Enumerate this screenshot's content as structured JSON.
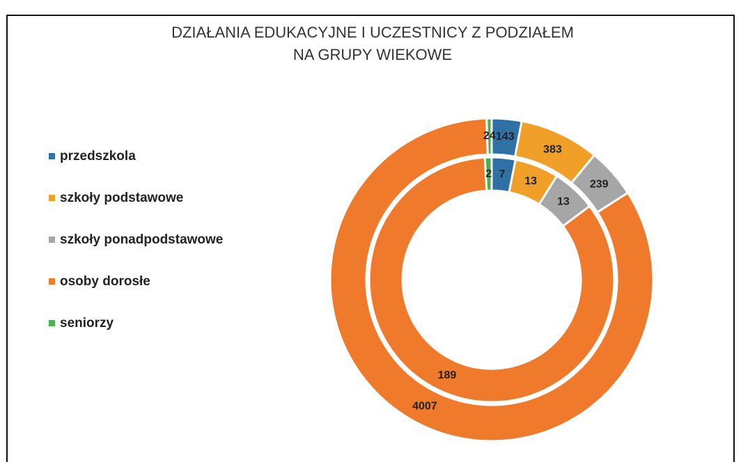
{
  "chart_data": {
    "type": "donut",
    "title": [
      "DZIAŁANIA EDUKACYJNE I UCZESTNICY Z PODZIAŁEM",
      "NA GRUPY WIEKOWE"
    ],
    "categories": [
      "przedszkola",
      "szkoły podstawowe",
      "szkoły ponadpodstawowe",
      "osoby dorosłe",
      "seniorzy"
    ],
    "colors": [
      "#2f71a5",
      "#f0a028",
      "#a6a6a6",
      "#f07a2c",
      "#4caf50"
    ],
    "series": [
      {
        "values": [
          7,
          13,
          13,
          189,
          2
        ]
      },
      {
        "values": [
          143,
          383,
          239,
          4007,
          24
        ]
      }
    ]
  }
}
